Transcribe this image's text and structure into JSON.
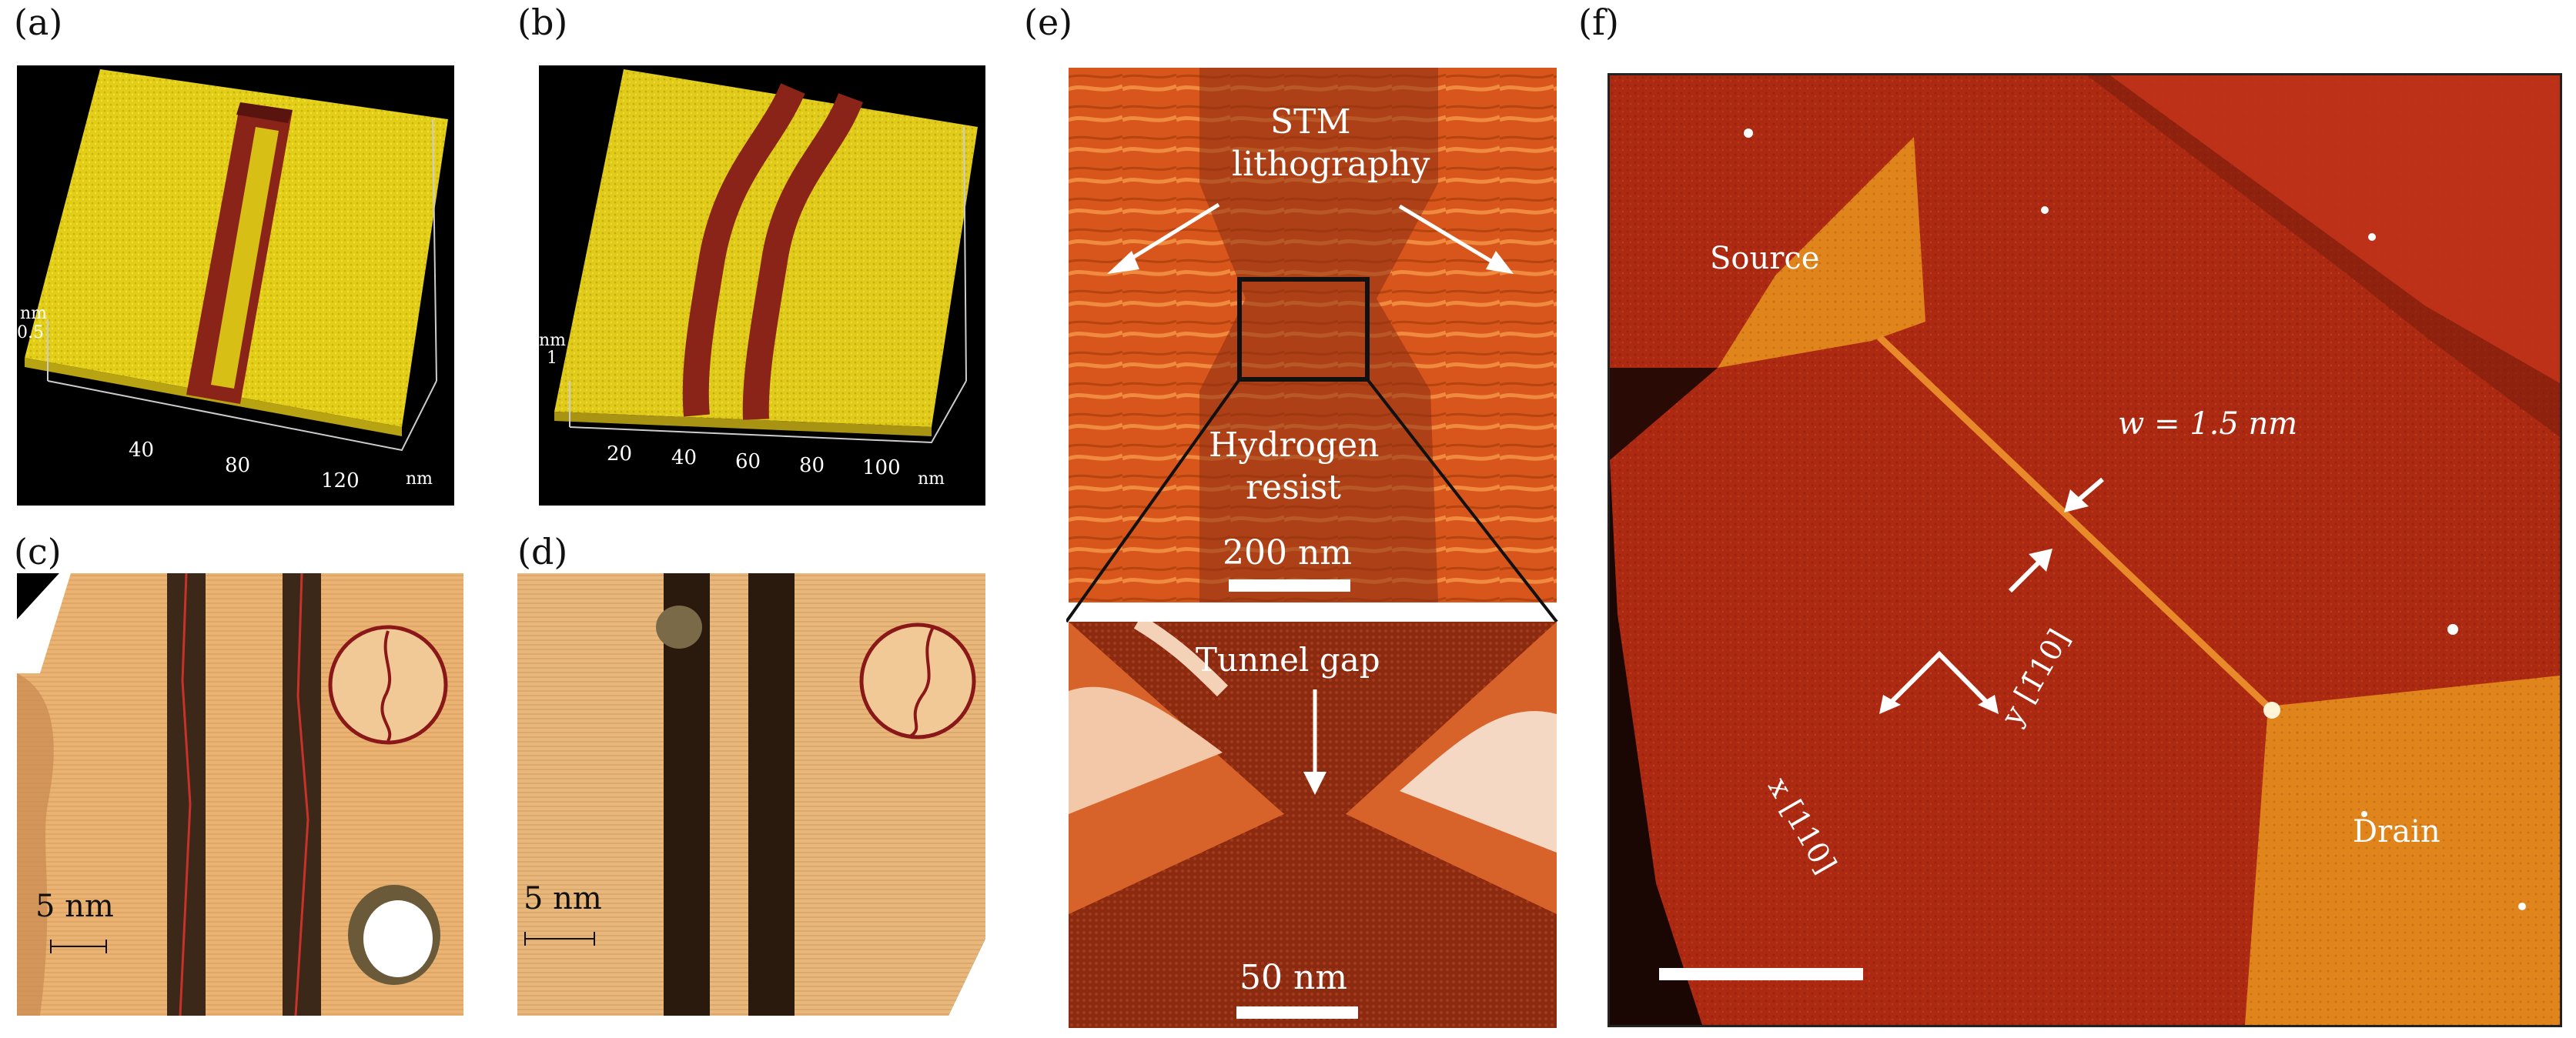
{
  "panels": {
    "a": {
      "label": "(a)",
      "axis_unit_v": "nm",
      "axis_tick_v": "0.5",
      "x_ticks": [
        "40",
        "80",
        "120"
      ],
      "x_unit": "nm"
    },
    "b": {
      "label": "(b)",
      "axis_unit_v": "nm",
      "axis_tick_v": "1",
      "x_ticks": [
        "20",
        "40",
        "60",
        "80",
        "100"
      ],
      "x_unit": "nm"
    },
    "c": {
      "label": "(c)",
      "scale_bar": "5 nm"
    },
    "d": {
      "label": "(d)",
      "scale_bar": "5 nm"
    },
    "e": {
      "label": "(e)",
      "stm_line1": "STM",
      "stm_line2": "lithography",
      "resist_line1": "Hydrogen",
      "resist_line2": "resist",
      "scale_top": "200 nm",
      "tunnel_gap": "Tunnel gap",
      "scale_bottom": "50 nm"
    },
    "f": {
      "label": "(f)",
      "source": "Source",
      "drain": "Drain",
      "width_label": "w = 1.5 nm",
      "axis_x": "x [110]",
      "axis_y": "y [1̄10]"
    }
  },
  "colors": {
    "yellow_surface": "#e8d21a",
    "dark_trench": "#7a1e1a",
    "stm_orange": "#d4551a",
    "stm_dark": "#8a2a10",
    "f_red": "#b02a12",
    "f_orange": "#e3891d"
  }
}
